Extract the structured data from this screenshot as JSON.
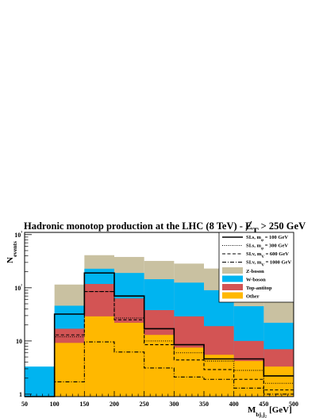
{
  "chart_data": {
    "type": "histogram",
    "title": "Hadronic monotop production at the LHC (8 TeV) - E̸T > 250 GeV",
    "title_parts": {
      "main": "Hadronic monotop production at the LHC (8 TeV) - ",
      "met_symbol": "E",
      "met_subscript": "T",
      "cut": " > 250 GeV"
    },
    "xlabel": "M",
    "xlabel_subscript": "bj₁j₂",
    "xlabel_unit": "[GeV]",
    "ylabel": "N",
    "ylabel_subscript": "events",
    "xlim": [
      50,
      500
    ],
    "ylim": [
      0.9,
      1100
    ],
    "yscale": "log",
    "x_ticks": [
      50,
      100,
      150,
      200,
      250,
      300,
      350,
      400,
      450,
      500
    ],
    "y_ticks": [
      {
        "value": 1,
        "label": "1"
      },
      {
        "value": 10,
        "label": "10"
      },
      {
        "value": 100,
        "label": "10²"
      },
      {
        "value": 1000,
        "label": "10³"
      }
    ],
    "bin_edges": [
      50,
      100,
      150,
      200,
      250,
      300,
      350,
      400,
      450,
      500
    ],
    "stacked_backgrounds": [
      {
        "name": "Z-boson",
        "color": "#c9c1a1",
        "cumulative": [
          0.9,
          115,
          410,
          380,
          320,
          285,
          230,
          180,
          150
        ]
      },
      {
        "name": "W-boson",
        "color": "#00b4f0",
        "cumulative": [
          3.3,
          46,
          228,
          190,
          145,
          125,
          90,
          45,
          22
        ]
      },
      {
        "name": "Top-antitop",
        "color": "#d35454",
        "cumulative": [
          0.9,
          17,
          118,
          63,
          38,
          29,
          19,
          10,
          7
        ]
      },
      {
        "name": "Other",
        "color": "#ffb800",
        "cumulative": [
          0.9,
          9.2,
          29,
          22,
          13,
          7.5,
          5.5,
          4.2,
          3.3
        ]
      }
    ],
    "signals": [
      {
        "name": "SI.s, m",
        "subscript": "φ",
        "mass": " = 100 GeV",
        "style": "solid",
        "values": [
          0.9,
          32,
          190,
          70,
          17,
          8.5,
          4.6,
          4.6,
          2.2
        ]
      },
      {
        "name": "SI.s, m",
        "subscript": "φ",
        "mass": " = 300 GeV",
        "style": "dotted",
        "values": [
          0.9,
          12,
          85,
          27,
          10,
          6,
          4.2,
          2.8,
          1.6
        ]
      },
      {
        "name": "SI.v, m",
        "subscript": "V",
        "mass": " = 600 GeV",
        "style": "dashed",
        "values": [
          0.9,
          13,
          85,
          25,
          8.5,
          4.4,
          2.9,
          1.9,
          1.2
        ]
      },
      {
        "name": "SI.v, m",
        "subscript": "V",
        "mass": " = 1000 GeV",
        "style": "dashdot",
        "values": [
          0.9,
          1.7,
          9.6,
          6.2,
          3.1,
          2.1,
          1.9,
          1.3,
          1.0
        ]
      }
    ],
    "legend": "top-right",
    "grid": false
  }
}
